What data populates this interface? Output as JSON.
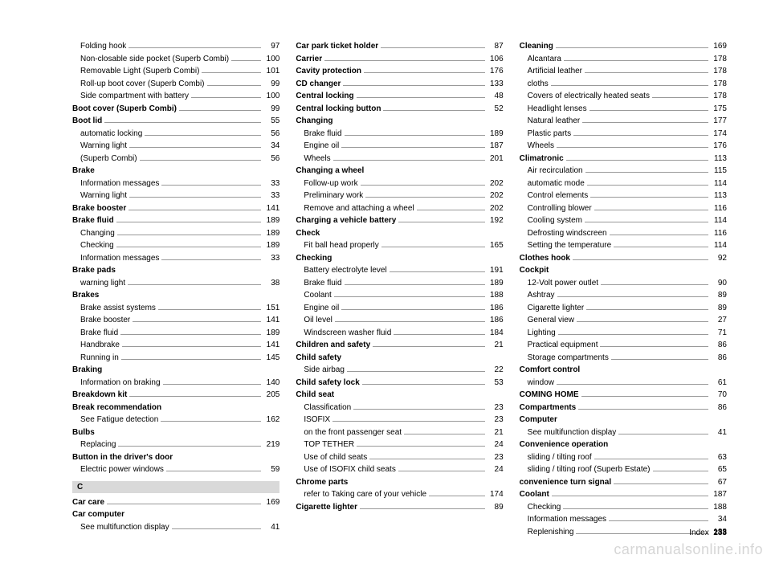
{
  "footer": {
    "label": "Index",
    "page": "233"
  },
  "watermark": "carmanualsonline.info",
  "section_header": "C",
  "columns": [
    [
      {
        "label": "Folding hook",
        "page": "97",
        "indent": true
      },
      {
        "label": "Non-closable side pocket (Superb Combi)",
        "page": "100",
        "indent": true
      },
      {
        "label": "Removable Light (Superb Combi)",
        "page": "101",
        "indent": true
      },
      {
        "label": "Roll-up boot cover (Superb Combi)",
        "page": "99",
        "indent": true
      },
      {
        "label": "Side compartment with battery",
        "page": "100",
        "indent": true
      },
      {
        "label": "Boot cover (Superb Combi)",
        "page": "99",
        "bold": true
      },
      {
        "label": "Boot lid",
        "page": "55",
        "bold": true
      },
      {
        "label": "automatic locking",
        "page": "56",
        "indent": true
      },
      {
        "label": "Warning light",
        "page": "34",
        "indent": true
      },
      {
        "label": "(Superb Combi)",
        "page": "56",
        "indent": true
      },
      {
        "label": "Brake",
        "bold": true,
        "noPage": true
      },
      {
        "label": "Information messages",
        "page": "33",
        "indent": true
      },
      {
        "label": "Warning light",
        "page": "33",
        "indent": true
      },
      {
        "label": "Brake booster",
        "page": "141",
        "bold": true
      },
      {
        "label": "Brake fluid",
        "page": "189",
        "bold": true
      },
      {
        "label": "Changing",
        "page": "189",
        "indent": true
      },
      {
        "label": "Checking",
        "page": "189",
        "indent": true
      },
      {
        "label": "Information messages",
        "page": "33",
        "indent": true
      },
      {
        "label": "Brake pads",
        "bold": true,
        "noPage": true
      },
      {
        "label": "warning light",
        "page": "38",
        "indent": true
      },
      {
        "label": "Brakes",
        "bold": true,
        "noPage": true
      },
      {
        "label": "Brake assist systems",
        "page": "151",
        "indent": true
      },
      {
        "label": "Brake booster",
        "page": "141",
        "indent": true
      },
      {
        "label": "Brake fluid",
        "page": "189",
        "indent": true
      },
      {
        "label": "Handbrake",
        "page": "141",
        "indent": true
      },
      {
        "label": "Running in",
        "page": "145",
        "indent": true
      },
      {
        "label": "Braking",
        "bold": true,
        "noPage": true
      },
      {
        "label": "Information on braking",
        "page": "140",
        "indent": true
      },
      {
        "label": "Breakdown kit",
        "page": "205",
        "bold": true
      },
      {
        "label": "Break recommendation",
        "bold": true,
        "noPage": true
      },
      {
        "label": "See Fatigue detection",
        "page": "162",
        "indent": true
      },
      {
        "label": "Bulbs",
        "bold": true,
        "noPage": true
      },
      {
        "label": "Replacing",
        "page": "219",
        "indent": true
      },
      {
        "label": "Button in the driver's door",
        "bold": true,
        "noPage": true
      },
      {
        "label": "Electric power windows",
        "page": "59",
        "indent": true
      },
      {
        "sectionHeader": true
      },
      {
        "label": "Car care",
        "page": "169",
        "bold": true
      },
      {
        "label": "Car computer",
        "bold": true,
        "noPage": true
      },
      {
        "label": "See multifunction display",
        "page": "41",
        "indent": true
      }
    ],
    [
      {
        "label": "Car park ticket holder",
        "page": "87",
        "bold": true
      },
      {
        "label": "Carrier",
        "page": "106",
        "bold": true
      },
      {
        "label": "Cavity protection",
        "page": "176",
        "bold": true
      },
      {
        "label": "CD changer",
        "page": "133",
        "bold": true
      },
      {
        "label": "Central locking",
        "page": "48",
        "bold": true
      },
      {
        "label": "Central locking button",
        "page": "52",
        "bold": true
      },
      {
        "label": "Changing",
        "bold": true,
        "noPage": true
      },
      {
        "label": "Brake fluid",
        "page": "189",
        "indent": true
      },
      {
        "label": "Engine oil",
        "page": "187",
        "indent": true
      },
      {
        "label": "Wheels",
        "page": "201",
        "indent": true
      },
      {
        "label": "Changing a wheel",
        "bold": true,
        "noPage": true
      },
      {
        "label": "Follow-up work",
        "page": "202",
        "indent": true
      },
      {
        "label": "Preliminary work",
        "page": "202",
        "indent": true
      },
      {
        "label": "Remove and attaching a wheel",
        "page": "202",
        "indent": true
      },
      {
        "label": "Charging a vehicle battery",
        "page": "192",
        "bold": true
      },
      {
        "label": "Check",
        "bold": true,
        "noPage": true
      },
      {
        "label": "Fit ball head properly",
        "page": "165",
        "indent": true
      },
      {
        "label": "Checking",
        "bold": true,
        "noPage": true
      },
      {
        "label": "Battery electrolyte level",
        "page": "191",
        "indent": true
      },
      {
        "label": "Brake fluid",
        "page": "189",
        "indent": true
      },
      {
        "label": "Coolant",
        "page": "188",
        "indent": true
      },
      {
        "label": "Engine oil",
        "page": "186",
        "indent": true
      },
      {
        "label": "Oil level",
        "page": "186",
        "indent": true
      },
      {
        "label": "Windscreen washer fluid",
        "page": "184",
        "indent": true
      },
      {
        "label": "Children and safety",
        "page": "21",
        "bold": true
      },
      {
        "label": "Child safety",
        "bold": true,
        "noPage": true
      },
      {
        "label": "Side airbag",
        "page": "22",
        "indent": true
      },
      {
        "label": "Child safety lock",
        "page": "53",
        "bold": true
      },
      {
        "label": "Child seat",
        "bold": true,
        "noPage": true
      },
      {
        "label": "Classification",
        "page": "23",
        "indent": true
      },
      {
        "label": "ISOFIX",
        "page": "23",
        "indent": true
      },
      {
        "label": "on the front passenger seat",
        "page": "21",
        "indent": true
      },
      {
        "label": "TOP TETHER",
        "page": "24",
        "indent": true
      },
      {
        "label": "Use of child seats",
        "page": "23",
        "indent": true
      },
      {
        "label": "Use of ISOFIX child seats",
        "page": "24",
        "indent": true
      },
      {
        "label": "Chrome parts",
        "bold": true,
        "noPage": true
      },
      {
        "label": "refer to Taking care of your vehicle",
        "page": "174",
        "indent": true
      },
      {
        "label": "Cigarette lighter",
        "page": "89",
        "bold": true
      }
    ],
    [
      {
        "label": "Cleaning",
        "page": "169",
        "bold": true
      },
      {
        "label": "Alcantara",
        "page": "178",
        "indent": true
      },
      {
        "label": "Artificial leather",
        "page": "178",
        "indent": true
      },
      {
        "label": "cloths",
        "page": "178",
        "indent": true
      },
      {
        "label": "Covers of electrically heated seats",
        "page": "178",
        "indent": true
      },
      {
        "label": "Headlight lenses",
        "page": "175",
        "indent": true
      },
      {
        "label": "Natural leather",
        "page": "177",
        "indent": true
      },
      {
        "label": "Plastic parts",
        "page": "174",
        "indent": true
      },
      {
        "label": "Wheels",
        "page": "176",
        "indent": true
      },
      {
        "label": "Climatronic",
        "page": "113",
        "bold": true
      },
      {
        "label": "Air recirculation",
        "page": "115",
        "indent": true
      },
      {
        "label": "automatic mode",
        "page": "114",
        "indent": true
      },
      {
        "label": "Control elements",
        "page": "113",
        "indent": true
      },
      {
        "label": "Controlling blower",
        "page": "116",
        "indent": true
      },
      {
        "label": "Cooling system",
        "page": "114",
        "indent": true
      },
      {
        "label": "Defrosting windscreen",
        "page": "116",
        "indent": true
      },
      {
        "label": "Setting the temperature",
        "page": "114",
        "indent": true
      },
      {
        "label": "Clothes hook",
        "page": "92",
        "bold": true
      },
      {
        "label": "Cockpit",
        "bold": true,
        "noPage": true
      },
      {
        "label": "12-Volt power outlet",
        "page": "90",
        "indent": true
      },
      {
        "label": "Ashtray",
        "page": "89",
        "indent": true
      },
      {
        "label": "Cigarette lighter",
        "page": "89",
        "indent": true
      },
      {
        "label": "General view",
        "page": "27",
        "indent": true
      },
      {
        "label": "Lighting",
        "page": "71",
        "indent": true
      },
      {
        "label": "Practical equipment",
        "page": "86",
        "indent": true
      },
      {
        "label": "Storage compartments",
        "page": "86",
        "indent": true
      },
      {
        "label": "Comfort control",
        "bold": true,
        "noPage": true
      },
      {
        "label": "window",
        "page": "61",
        "indent": true
      },
      {
        "label": "COMING HOME",
        "page": "70",
        "bold": true
      },
      {
        "label": "Compartments",
        "page": "86",
        "bold": true
      },
      {
        "label": "Computer",
        "bold": true,
        "noPage": true
      },
      {
        "label": "See multifunction display",
        "page": "41",
        "indent": true
      },
      {
        "label": "Convenience operation",
        "bold": true,
        "noPage": true
      },
      {
        "label": "sliding / tilting roof",
        "page": "63",
        "indent": true
      },
      {
        "label": "sliding / tilting roof (Superb Estate)",
        "page": "65",
        "indent": true
      },
      {
        "label": "convenience turn signal",
        "page": "67",
        "bold": true
      },
      {
        "label": "Coolant",
        "page": "187",
        "bold": true
      },
      {
        "label": "Checking",
        "page": "188",
        "indent": true
      },
      {
        "label": "Information messages",
        "page": "34",
        "indent": true
      },
      {
        "label": "Replenishing",
        "page": "188",
        "indent": true
      }
    ]
  ]
}
